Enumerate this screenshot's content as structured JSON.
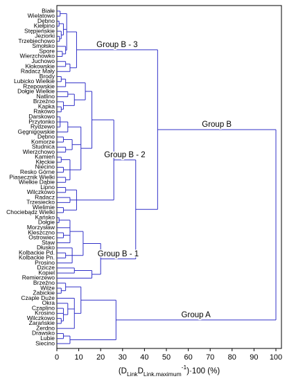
{
  "chart_data": {
    "type": "dendrogram",
    "color": "#3030c8",
    "xlim": [
      0,
      100
    ],
    "xticks": [
      0,
      10,
      20,
      30,
      40,
      50,
      60,
      70,
      80,
      90,
      100
    ],
    "x_label": [
      {
        "text": "(D"
      },
      {
        "text": "Link",
        "sub": true
      },
      {
        "text": "D"
      },
      {
        "text": "Link.maximum",
        "sub": true
      },
      {
        "text": "-1",
        "sup": true
      },
      {
        "text": ")·100 (%)"
      }
    ],
    "tree": {
      "height": 100,
      "children": [
        {
          "label": "Group B",
          "height": 46,
          "children": [
            {
              "label": "Group B - 3",
              "height": 9,
              "children": [
                {
                  "height": 4.5,
                  "children": [
                    {
                      "height": 1.5,
                      "children": [
                        "Białe",
                        "Wielatowo"
                      ]
                    },
                    {
                      "height": 3,
                      "children": [
                        {
                          "height": 1,
                          "children": [
                            "Dębno",
                            "Kiełpino"
                          ]
                        },
                        {
                          "height": 2,
                          "children": [
                            "Stępieńskie",
                            {
                              "height": 1.2,
                              "children": [
                                "Jeziorki",
                                "Trzebiechowo"
                              ]
                            }
                          ]
                        }
                      ]
                    },
                    {
                      "height": 4,
                      "children": [
                        "Smołsko",
                        {
                          "height": 2.5,
                          "children": [
                            "Spore",
                            "Wierzchowko"
                          ]
                        }
                      ]
                    }
                  ]
                },
                {
                  "height": 6,
                  "children": [
                    {
                      "height": 4,
                      "children": [
                        "Juchowo",
                        "Kłokowskie"
                      ]
                    },
                    "Radacz Mały"
                  ]
                }
              ]
            },
            {
              "height": 36,
              "children": [
                {
                  "label": "Group B - 2",
                  "height": 26,
                  "children": [
                    {
                      "height": 16,
                      "children": [
                        {
                          "height": 13,
                          "children": [
                            {
                              "height": 4,
                              "children": [
                                {
                                  "height": 2,
                                  "children": [
                                    "Brody",
                                    "Lubicko Wielkie"
                                  ]
                                },
                                "Rzepowskie"
                              ]
                            },
                            {
                              "height": 8,
                              "children": [
                                {
                                  "height": 5,
                                  "children": [
                                    "Dołgie Wielkie",
                                    "Natlino"
                                  ]
                                },
                                {
                                  "height": 3,
                                  "children": [
                                    "Brzeźno",
                                    {
                                      "height": 2,
                                      "children": [
                                        "Kapka",
                                        "Rakowo"
                                      ]
                                    }
                                  ]
                                }
                              ]
                            }
                          ]
                        },
                        {
                          "height": 11,
                          "children": [
                            {
                              "height": 5,
                              "children": [
                                {
                                  "height": 1.5,
                                  "children": [
                                    "Darskowo",
                                    "Przytonko",
                                    "Rydzewo"
                                  ]
                                },
                                "Gęgnigowskie"
                              ]
                            },
                            {
                              "height": 7,
                              "children": [
                                {
                                  "height": 3,
                                  "children": [
                                    "Dębno",
                                    "Komorze"
                                  ]
                                },
                                {
                                  "height": 4,
                                  "children": [
                                    "Studnica",
                                    "Wierzchowo"
                                  ]
                                }
                              ]
                            },
                            {
                              "height": 6,
                              "children": [
                                {
                                  "height": 2,
                                  "children": [
                                    "Kamień",
                                    "Kłęckie"
                                  ]
                                },
                                {
                                  "height": 3,
                                  "children": [
                                    "Niecino",
                                    "Resko Górne"
                                  ]
                                },
                                {
                                  "height": 4,
                                  "children": [
                                    "Piasecznik Wielki",
                                    "Wielkie Dąbie"
                                  ]
                                }
                              ]
                            }
                          ]
                        }
                      ]
                    },
                    {
                      "height": 9,
                      "children": [
                        {
                          "height": 4,
                          "children": [
                            "Lipno",
                            "Wilczkowo"
                          ]
                        },
                        {
                          "height": 6,
                          "children": [
                            "Radacz",
                            "Trzesiecko"
                          ]
                        },
                        {
                          "height": 3,
                          "children": [
                            "Wielimie",
                            "Chociebądz Wielki"
                          ]
                        }
                      ]
                    }
                  ]
                },
                {
                  "label": "Group B - 1",
                  "height": 20,
                  "children": [
                    {
                      "height": 12,
                      "children": [
                        {
                          "height": 6,
                          "children": [
                            {
                              "height": 1,
                              "children": [
                                "Kańsko",
                                "Dołgie"
                              ]
                            },
                            "Morzysław",
                            {
                              "height": 3,
                              "children": [
                                "Kleszczno",
                                "Ostrowiec"
                              ]
                            },
                            "Staw"
                          ]
                        },
                        {
                          "height": 7,
                          "children": [
                            "Dłusko",
                            {
                              "height": 4,
                              "children": [
                                "Kolbackie Pd.",
                                "Kolbackie Pn."
                              ]
                            },
                            "Prosino"
                          ]
                        }
                      ]
                    },
                    {
                      "height": 16,
                      "children": [
                        {
                          "height": 8,
                          "children": [
                            "Dzicze",
                            "Kopiel"
                          ]
                        },
                        "Remierzewo"
                      ]
                    }
                  ]
                }
              ]
            }
          ]
        },
        {
          "label": "Group A",
          "height": 27,
          "children": [
            {
              "height": 11,
              "children": [
                {
                  "height": 4,
                  "children": [
                    "Brzeźno",
                    {
                      "height": 2,
                      "children": [
                        "Wilże",
                        "Żabickie"
                      ]
                    }
                  ]
                },
                {
                  "height": 8,
                  "children": [
                    "Czaple Duże",
                    {
                      "height": 5,
                      "children": [
                        "Okra",
                        {
                          "height": 3,
                          "children": [
                            "Czaplino",
                            "Krosino",
                            {
                              "height": 2,
                              "children": [
                                "Wilczkowo",
                                "Zarańskie"
                              ]
                            }
                          ]
                        }
                      ]
                    },
                    "Żerdno"
                  ]
                }
              ]
            },
            {
              "height": 6,
              "children": [
                {
                  "height": 3,
                  "children": [
                    "Drawsko",
                    "Lubie"
                  ]
                },
                "Siecino"
              ]
            }
          ]
        }
      ]
    }
  }
}
